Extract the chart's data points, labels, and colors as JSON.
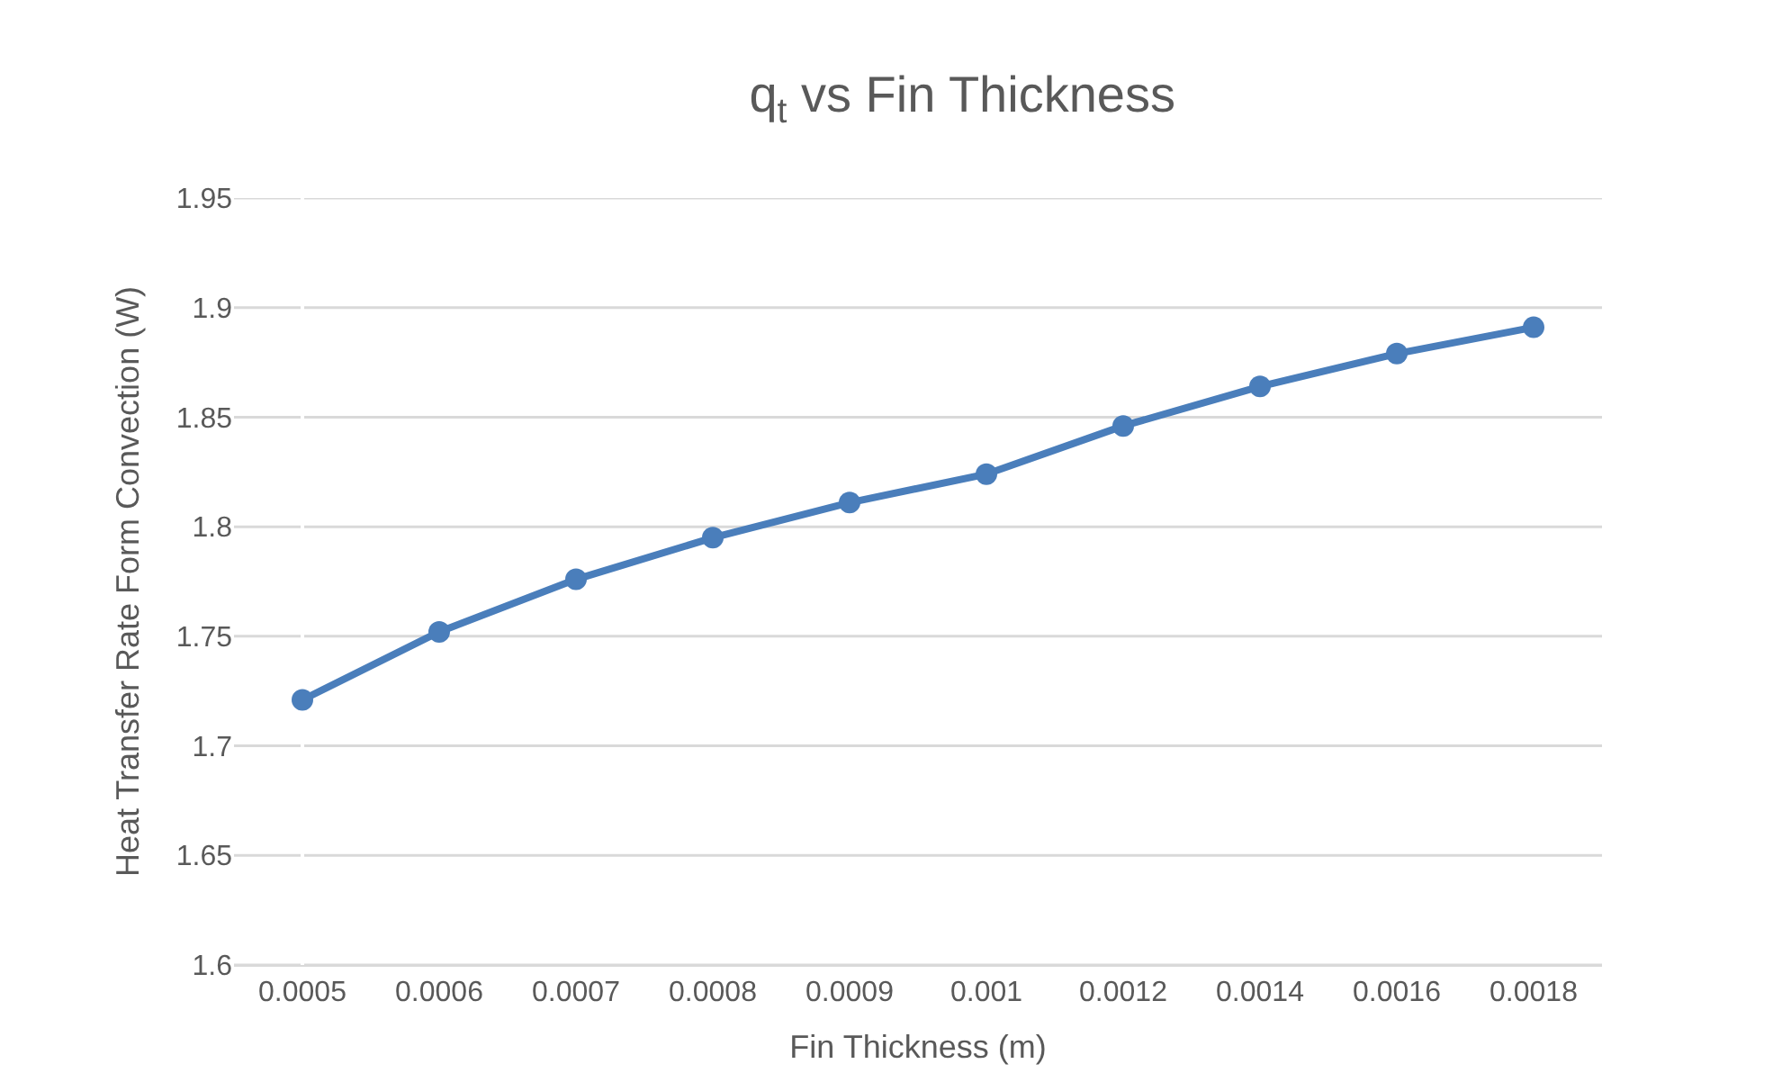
{
  "chart_data": {
    "type": "line",
    "title": "q$_{t}$ vs Fin Thickness",
    "xlabel": "Fin Thickness (m)",
    "ylabel": "Heat Transfer Rate Form Convection (W)",
    "categories": [
      "0.0005",
      "0.0006",
      "0.0007",
      "0.0008",
      "0.0009",
      "0.001",
      "0.0012",
      "0.0014",
      "0.0016",
      "0.0018"
    ],
    "series": [
      {
        "color": "#4a7ebb",
        "values": [
          1.721,
          1.752,
          1.776,
          1.795,
          1.811,
          1.824,
          1.846,
          1.864,
          1.879,
          1.891
        ]
      }
    ],
    "ylim": [
      1.6,
      1.95
    ],
    "yticks": [
      1.6,
      1.65,
      1.7,
      1.75,
      1.8,
      1.85,
      1.9,
      1.95
    ],
    "grid": "y",
    "marker": "circle",
    "line_style": "solid"
  }
}
